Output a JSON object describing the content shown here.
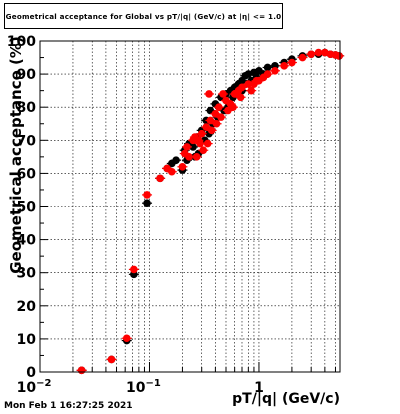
{
  "title": "Geometrical acceptance for Global vs pT/|q| (GeV/c) at |η| <= 1.0",
  "xlabel": "pT/|q| (GeV/c)",
  "ylabel": "Geometrical acceptance (%)",
  "datestamp": "Mon Feb  1 16:27:25 2021",
  "chart_data": {
    "type": "scatter",
    "title": "Geometrical acceptance for Global vs pT/|q| (GeV/c) at |η| <= 1.0",
    "xlabel": "pT/|q| (GeV/c)",
    "ylabel": "Geometrical acceptance (%)",
    "xscale": "log",
    "xlim": [
      0.01,
      5.5
    ],
    "ylim": [
      0,
      100
    ],
    "x_ticks": [
      "10^-2",
      "10^-1",
      "1"
    ],
    "y_ticks": [
      0,
      10,
      20,
      30,
      40,
      50,
      60,
      70,
      80,
      90,
      100
    ],
    "grid": true,
    "series": [
      {
        "color": "#000000",
        "marker": "circle",
        "points": [
          [
            0.024,
            0.5
          ],
          [
            0.045,
            3.8
          ],
          [
            0.062,
            9.5
          ],
          [
            0.072,
            29.5
          ],
          [
            0.095,
            51
          ],
          [
            0.125,
            58.5
          ],
          [
            0.145,
            61.5
          ],
          [
            0.16,
            63
          ],
          [
            0.175,
            64
          ],
          [
            0.2,
            61
          ],
          [
            0.21,
            67
          ],
          [
            0.23,
            69
          ],
          [
            0.25,
            68
          ],
          [
            0.27,
            71
          ],
          [
            0.3,
            73
          ],
          [
            0.33,
            76
          ],
          [
            0.36,
            79
          ],
          [
            0.4,
            81
          ],
          [
            0.45,
            83
          ],
          [
            0.5,
            84
          ],
          [
            0.55,
            85
          ],
          [
            0.6,
            86
          ],
          [
            0.65,
            87
          ],
          [
            0.7,
            88
          ],
          [
            0.75,
            89.5
          ],
          [
            0.8,
            90
          ],
          [
            0.9,
            90.5
          ],
          [
            1.0,
            91
          ],
          [
            1.2,
            92
          ],
          [
            1.4,
            92.5
          ],
          [
            1.7,
            93.5
          ],
          [
            2.0,
            94.5
          ],
          [
            2.5,
            95.5
          ],
          [
            3.0,
            96
          ],
          [
            3.5,
            96
          ],
          [
            4.0,
            96.5
          ],
          [
            4.5,
            96
          ],
          [
            5.0,
            95.8
          ],
          [
            5.4,
            95.5
          ],
          [
            0.28,
            66
          ],
          [
            0.32,
            70
          ],
          [
            0.38,
            75
          ],
          [
            0.42,
            77
          ],
          [
            0.48,
            79
          ],
          [
            0.52,
            80
          ],
          [
            0.58,
            83
          ],
          [
            0.62,
            84
          ],
          [
            0.85,
            88
          ],
          [
            0.95,
            89
          ],
          [
            1.1,
            90
          ],
          [
            0.7,
            85
          ],
          [
            0.35,
            72
          ],
          [
            0.26,
            65
          ],
          [
            0.22,
            64
          ]
        ]
      },
      {
        "color": "#ff0000",
        "marker": "circle",
        "points": [
          [
            0.024,
            0.5
          ],
          [
            0.045,
            3.8
          ],
          [
            0.062,
            10.2
          ],
          [
            0.072,
            31
          ],
          [
            0.095,
            53.5
          ],
          [
            0.125,
            58.5
          ],
          [
            0.145,
            61.5
          ],
          [
            0.16,
            60.5
          ],
          [
            0.2,
            62
          ],
          [
            0.21,
            66
          ],
          [
            0.23,
            65
          ],
          [
            0.25,
            70
          ],
          [
            0.27,
            65
          ],
          [
            0.29,
            69
          ],
          [
            0.3,
            72
          ],
          [
            0.33,
            74
          ],
          [
            0.36,
            76
          ],
          [
            0.4,
            78
          ],
          [
            0.43,
            80
          ],
          [
            0.47,
            84
          ],
          [
            0.5,
            82
          ],
          [
            0.55,
            81
          ],
          [
            0.6,
            84
          ],
          [
            0.65,
            85
          ],
          [
            0.7,
            86
          ],
          [
            0.8,
            87
          ],
          [
            0.9,
            87
          ],
          [
            1.0,
            88
          ],
          [
            1.2,
            90
          ],
          [
            1.4,
            91
          ],
          [
            1.7,
            92.5
          ],
          [
            2.0,
            93.5
          ],
          [
            2.5,
            95
          ],
          [
            3.0,
            96
          ],
          [
            3.5,
            96.5
          ],
          [
            4.0,
            96.5
          ],
          [
            4.5,
            96
          ],
          [
            5.0,
            95.8
          ],
          [
            5.4,
            95.5
          ],
          [
            0.26,
            71
          ],
          [
            0.31,
            67
          ],
          [
            0.34,
            69
          ],
          [
            0.37,
            73
          ],
          [
            0.41,
            75
          ],
          [
            0.45,
            77
          ],
          [
            0.52,
            79
          ],
          [
            0.58,
            80
          ],
          [
            0.68,
            83
          ],
          [
            0.85,
            85
          ],
          [
            0.95,
            88
          ],
          [
            1.1,
            89
          ],
          [
            0.22,
            68
          ],
          [
            0.35,
            84
          ],
          [
            0.28,
            70
          ]
        ]
      }
    ]
  }
}
